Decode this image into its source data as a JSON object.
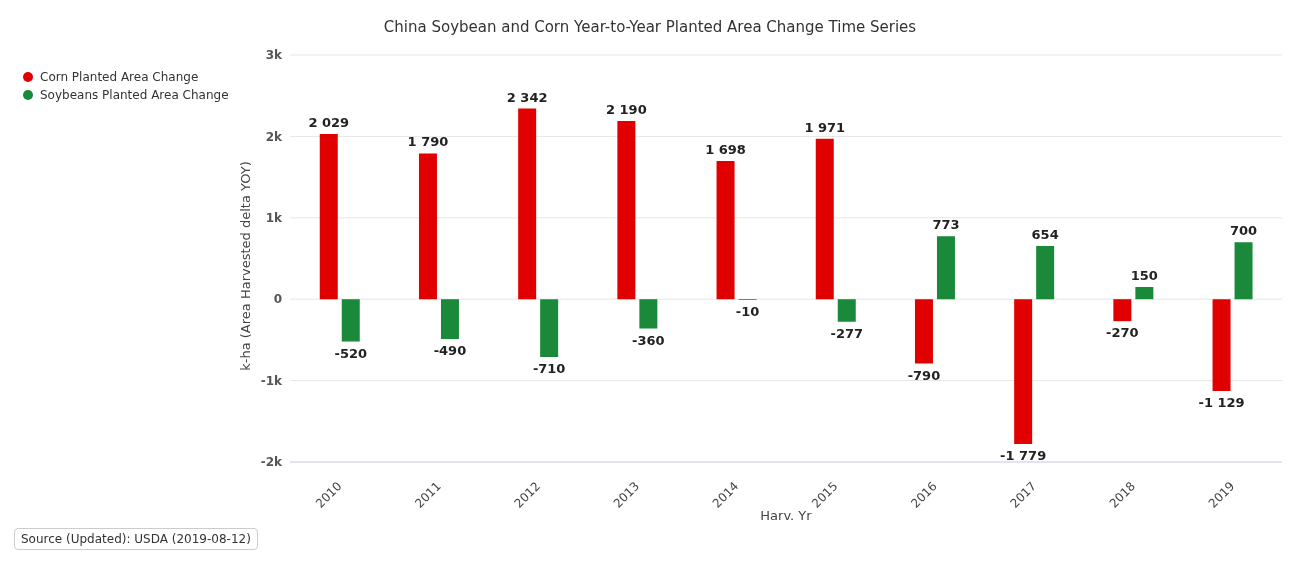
{
  "chart_data": {
    "type": "bar",
    "title": "China Soybean and Corn Year-to-Year Planted Area Change Time Series",
    "xlabel": "Harv. Yr",
    "ylabel": "k-ha (Area Harvested delta YOY)",
    "categories": [
      "2010",
      "2011",
      "2012",
      "2013",
      "2014",
      "2015",
      "2016",
      "2017",
      "2018",
      "2019"
    ],
    "series": [
      {
        "name": "Corn Planted Area Change",
        "color": "#e00000",
        "values": [
          2029,
          1790,
          2342,
          2190,
          1698,
          1971,
          -790,
          -1779,
          -270,
          -1129
        ],
        "value_labels": [
          "2 029",
          "1 790",
          "2 342",
          "2 190",
          "1 698",
          "1 971",
          "-790",
          "-1 779",
          "-270",
          "-1 129"
        ]
      },
      {
        "name": "Soybeans Planted Area Change",
        "color": "#1a8a3a",
        "values": [
          -520,
          -490,
          -710,
          -360,
          -10,
          -277,
          773,
          654,
          150,
          700
        ],
        "value_labels": [
          "-520",
          "-490",
          "-710",
          "-360",
          "-10",
          "-277",
          "773",
          "654",
          "150",
          "700"
        ]
      }
    ],
    "ylim": [
      -2000,
      3000
    ],
    "yticks": [
      {
        "value": -2000,
        "label": "-2k"
      },
      {
        "value": -1000,
        "label": "-1k"
      },
      0,
      {
        "value": 1000,
        "label": "1k"
      },
      {
        "value": 2000,
        "label": "2k"
      },
      {
        "value": 3000,
        "label": "3k"
      }
    ],
    "grid": "y",
    "legend": "top left",
    "annotations": [
      "Source (Updated): USDA (2019-08-12)"
    ]
  }
}
